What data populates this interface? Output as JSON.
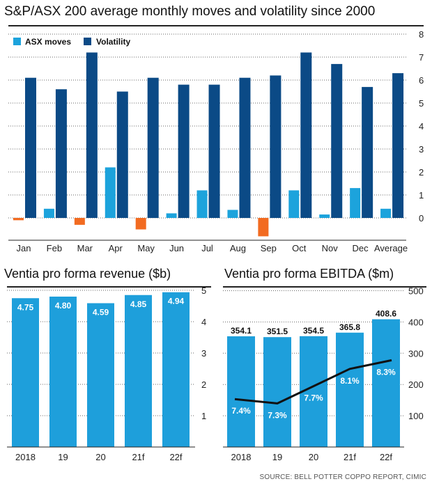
{
  "titles": {
    "main": "S&P/ASX 200 average monthly moves and volatility since 2000",
    "revenue": "Ventia pro forma revenue ($b)",
    "ebitda": "Ventia pro forma EBITDA ($m)",
    "source": "SOURCE: BELL POTTER COPPO REPORT, CIMIC"
  },
  "colors": {
    "asx": "#1ca3dc",
    "volatility": "#0b4a86",
    "negative": "#f26b21",
    "bars": "#1e9fdb",
    "line": "#111111"
  },
  "chart_data": [
    {
      "type": "bar",
      "title": "S&P/ASX 200 average monthly moves and volatility since 2000",
      "categories": [
        "Jan",
        "Feb",
        "Mar",
        "Apr",
        "May",
        "Jun",
        "Jul",
        "Aug",
        "Sep",
        "Oct",
        "Nov",
        "Dec",
        "Average"
      ],
      "series": [
        {
          "name": "ASX moves",
          "values": [
            -0.1,
            0.4,
            -0.3,
            2.2,
            -0.5,
            0.2,
            1.2,
            0.35,
            -0.8,
            1.2,
            0.15,
            1.3,
            0.4
          ]
        },
        {
          "name": "Volatility",
          "values": [
            6.1,
            5.6,
            7.2,
            5.5,
            6.1,
            5.8,
            5.8,
            6.1,
            6.2,
            7.2,
            6.7,
            5.7,
            6.3
          ]
        }
      ],
      "yticks": [
        0,
        1,
        2,
        3,
        4,
        5,
        6,
        7,
        8
      ],
      "ylim": [
        -1,
        8
      ],
      "legend": "top-left",
      "grid": true
    },
    {
      "type": "bar",
      "title": "Ventia pro forma revenue ($b)",
      "categories": [
        "2018",
        "19",
        "20",
        "21f",
        "22f"
      ],
      "values": [
        4.75,
        4.8,
        4.59,
        4.85,
        4.94
      ],
      "labels": [
        "4.75",
        "4.80",
        "4.59",
        "4.85",
        "4.94"
      ],
      "yticks": [
        1,
        2,
        3,
        4,
        5
      ],
      "ylim": [
        0,
        5.2
      ],
      "grid": true
    },
    {
      "type": "bar",
      "title": "Ventia pro forma EBITDA ($m)",
      "categories": [
        "2018",
        "19",
        "20",
        "21f",
        "22f"
      ],
      "values": [
        354.1,
        351.5,
        354.5,
        365.8,
        408.6
      ],
      "labels": [
        "354.1",
        "351.5",
        "354.5",
        "365.8",
        "408.6"
      ],
      "yticks": [
        100,
        200,
        300,
        400,
        500
      ],
      "ylim": [
        0,
        520
      ],
      "grid": true,
      "line_series": {
        "values": [
          7.4,
          7.3,
          7.7,
          8.1,
          8.3
        ],
        "labels": [
          "7.4%",
          "7.3%",
          "7.7%",
          "8.1%",
          "8.3%"
        ]
      }
    }
  ]
}
